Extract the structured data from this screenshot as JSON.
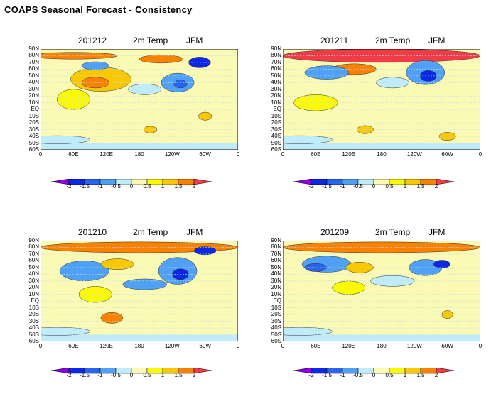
{
  "title": "COAPS Seasonal Forecast - Consistency",
  "panels": [
    {
      "date": "201212",
      "variable": "2m Temp",
      "season": "JFM"
    },
    {
      "date": "201211",
      "variable": "2m Temp",
      "season": "JFM"
    },
    {
      "date": "201210",
      "variable": "2m Temp",
      "season": "JFM"
    },
    {
      "date": "201209",
      "variable": "2m Temp",
      "season": "JFM"
    }
  ],
  "lat_labels": [
    "90N",
    "80N",
    "70N",
    "60N",
    "50N",
    "40N",
    "30N",
    "20N",
    "10N",
    "EQ",
    "10S",
    "20S",
    "30S",
    "40S",
    "50S",
    "60S"
  ],
  "lon_labels": [
    "0",
    "60E",
    "120E",
    "180",
    "120W",
    "60W",
    "0"
  ],
  "colorbar": {
    "labels": [
      "-2",
      "-1.5",
      "-1",
      "-0.5",
      "0",
      "0.5",
      "1",
      "1.5",
      "2"
    ],
    "colors": [
      "#8a00e6",
      "#0a28e6",
      "#2864f0",
      "#50a0f5",
      "#c0ecfa",
      "#fafab4",
      "#fafa00",
      "#fac800",
      "#fa8200",
      "#f03c46"
    ]
  }
}
